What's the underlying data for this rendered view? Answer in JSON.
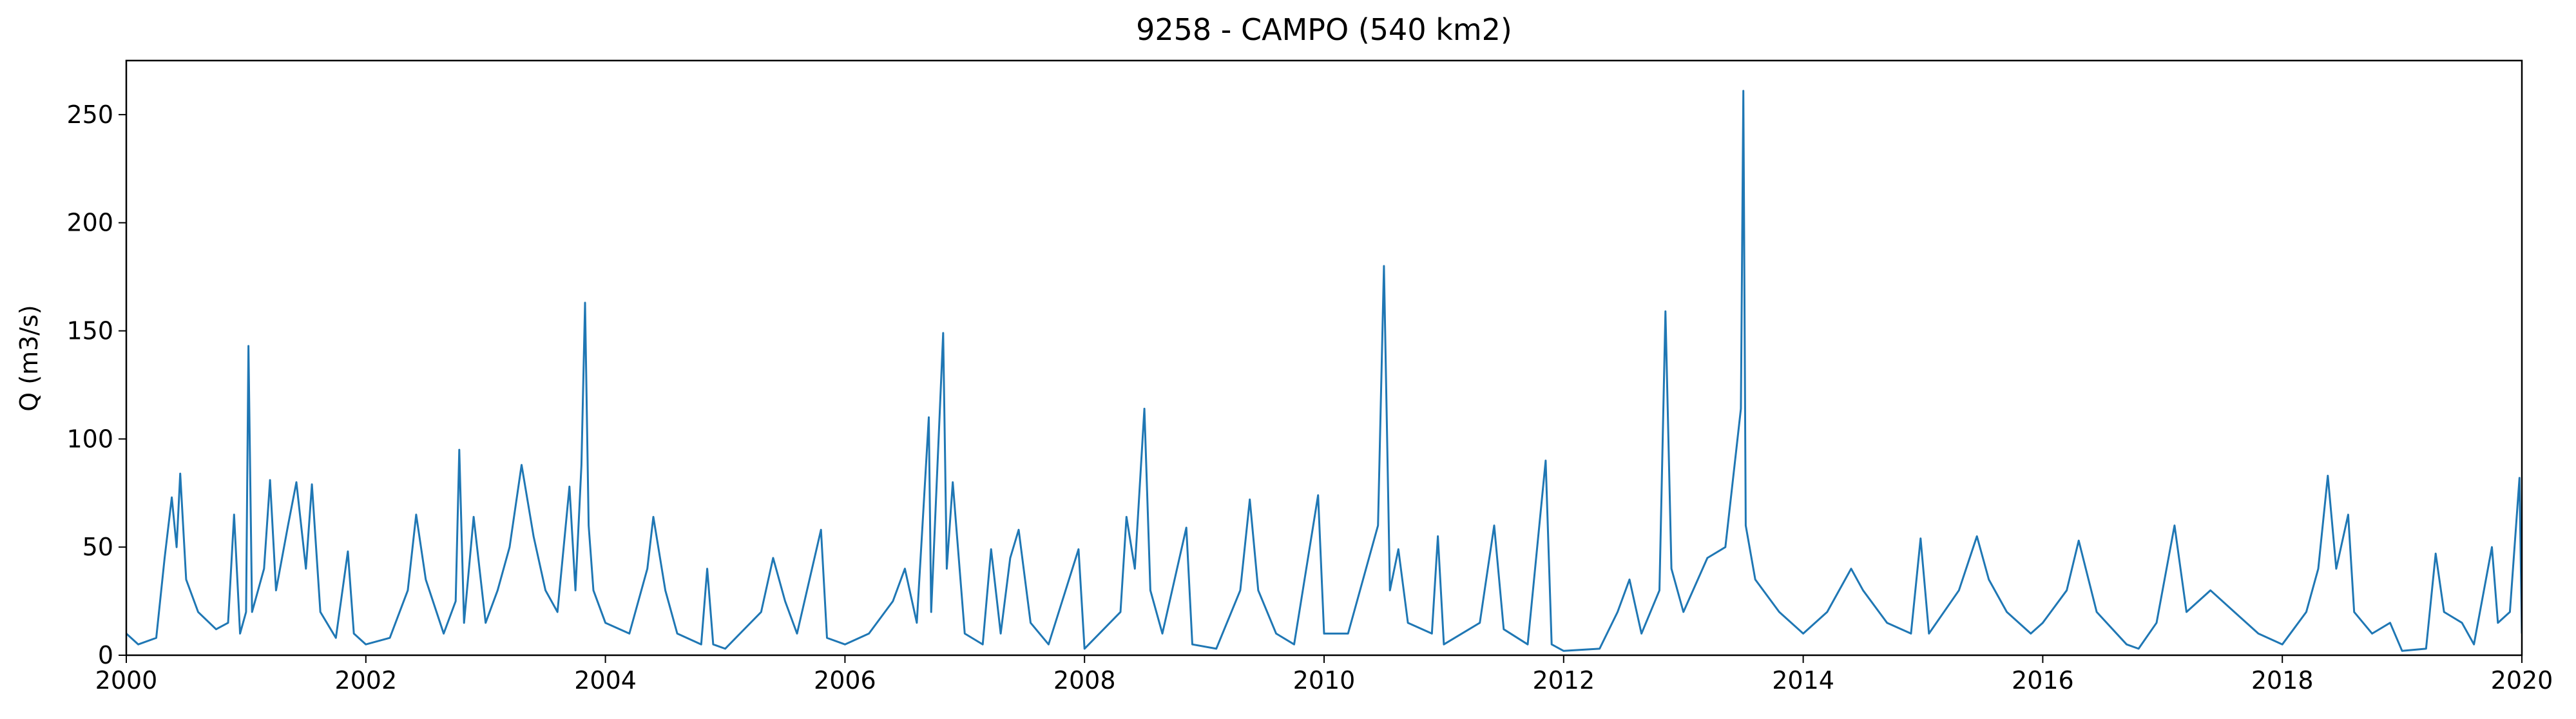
{
  "chart_data": {
    "type": "line",
    "title": "9258 - CAMPO (540 km2)",
    "ylabel": "Q (m3/s)",
    "xlim": [
      2000,
      2020
    ],
    "xticks": [
      2000,
      2002,
      2004,
      2006,
      2008,
      2010,
      2012,
      2014,
      2016,
      2018,
      2020
    ],
    "ylim": [
      0,
      275
    ],
    "yticks": [
      0,
      50,
      100,
      150,
      200,
      250
    ],
    "grid": false,
    "series": [
      {
        "name": "Q",
        "color": "#1f77b4",
        "x": [
          2000.0,
          2000.1,
          2000.25,
          2000.32,
          2000.38,
          2000.42,
          2000.45,
          2000.5,
          2000.6,
          2000.75,
          2000.85,
          2000.9,
          2000.95,
          2001.0,
          2001.02,
          2001.05,
          2001.15,
          2001.2,
          2001.25,
          2001.35,
          2001.42,
          2001.5,
          2001.55,
          2001.62,
          2001.75,
          2001.85,
          2001.9,
          2002.0,
          2002.2,
          2002.35,
          2002.42,
          2002.5,
          2002.65,
          2002.75,
          2002.78,
          2002.82,
          2002.9,
          2003.0,
          2003.1,
          2003.2,
          2003.3,
          2003.4,
          2003.5,
          2003.6,
          2003.7,
          2003.75,
          2003.8,
          2003.83,
          2003.86,
          2003.9,
          2004.0,
          2004.2,
          2004.35,
          2004.4,
          2004.5,
          2004.6,
          2004.8,
          2004.85,
          2004.9,
          2005.0,
          2005.3,
          2005.4,
          2005.5,
          2005.6,
          2005.8,
          2005.85,
          2006.0,
          2006.2,
          2006.4,
          2006.5,
          2006.6,
          2006.7,
          2006.72,
          2006.82,
          2006.85,
          2006.9,
          2007.0,
          2007.15,
          2007.22,
          2007.3,
          2007.38,
          2007.45,
          2007.55,
          2007.7,
          2007.95,
          2008.0,
          2008.3,
          2008.35,
          2008.42,
          2008.5,
          2008.55,
          2008.65,
          2008.85,
          2008.9,
          2009.1,
          2009.3,
          2009.38,
          2009.45,
          2009.6,
          2009.75,
          2009.95,
          2010.0,
          2010.2,
          2010.35,
          2010.45,
          2010.5,
          2010.55,
          2010.62,
          2010.7,
          2010.9,
          2010.95,
          2011.0,
          2011.3,
          2011.42,
          2011.5,
          2011.7,
          2011.85,
          2011.9,
          2012.0,
          2012.3,
          2012.45,
          2012.55,
          2012.65,
          2012.8,
          2012.85,
          2012.9,
          2013.0,
          2013.2,
          2013.35,
          2013.48,
          2013.5,
          2013.52,
          2013.6,
          2013.8,
          2014.0,
          2014.2,
          2014.4,
          2014.5,
          2014.7,
          2014.9,
          2014.98,
          2015.05,
          2015.3,
          2015.45,
          2015.55,
          2015.7,
          2015.9,
          2016.0,
          2016.2,
          2016.3,
          2016.45,
          2016.7,
          2016.8,
          2016.95,
          2017.05,
          2017.1,
          2017.2,
          2017.4,
          2017.6,
          2017.8,
          2018.0,
          2018.2,
          2018.3,
          2018.38,
          2018.45,
          2018.55,
          2018.6,
          2018.75,
          2018.9,
          2019.0,
          2019.2,
          2019.28,
          2019.35,
          2019.5,
          2019.6,
          2019.75,
          2019.8,
          2019.9,
          2019.98,
          2020.0
        ],
        "values": [
          10,
          5,
          8,
          45,
          73,
          50,
          84,
          35,
          20,
          12,
          15,
          65,
          10,
          20,
          143,
          20,
          40,
          81,
          30,
          60,
          80,
          40,
          79,
          20,
          8,
          48,
          10,
          5,
          8,
          30,
          65,
          35,
          10,
          25,
          95,
          15,
          64,
          15,
          30,
          50,
          88,
          55,
          30,
          20,
          78,
          30,
          88,
          163,
          60,
          30,
          15,
          10,
          40,
          64,
          30,
          10,
          5,
          40,
          5,
          3,
          20,
          45,
          25,
          10,
          58,
          8,
          5,
          10,
          25,
          40,
          15,
          110,
          20,
          149,
          40,
          80,
          10,
          5,
          49,
          10,
          45,
          58,
          15,
          5,
          49,
          3,
          20,
          64,
          40,
          114,
          30,
          10,
          59,
          5,
          3,
          30,
          72,
          30,
          10,
          5,
          74,
          10,
          10,
          40,
          60,
          180,
          30,
          49,
          15,
          10,
          55,
          5,
          15,
          60,
          12,
          5,
          90,
          5,
          2,
          3,
          20,
          35,
          10,
          30,
          159,
          40,
          20,
          45,
          50,
          114,
          261,
          60,
          35,
          20,
          10,
          20,
          40,
          30,
          15,
          10,
          54,
          10,
          30,
          55,
          35,
          20,
          10,
          15,
          30,
          53,
          20,
          5,
          3,
          15,
          45,
          60,
          20,
          30,
          20,
          10,
          5,
          20,
          40,
          83,
          40,
          65,
          20,
          10,
          15,
          2,
          3,
          47,
          20,
          15,
          5,
          50,
          15,
          20,
          82,
          10
        ]
      }
    ]
  }
}
